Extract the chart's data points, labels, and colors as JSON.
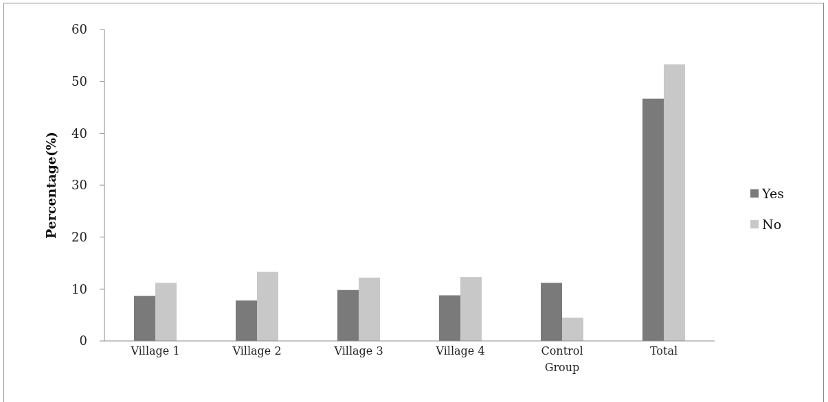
{
  "chart_data": {
    "type": "bar",
    "ylabel": "Percentage(%)",
    "categories": [
      "Village 1",
      "Village 2",
      "Village 3",
      "Village 4",
      "Control Group",
      "Total"
    ],
    "series": [
      {
        "name": "Yes",
        "color": "#7a7a7a",
        "values": [
          8.7,
          7.8,
          9.8,
          8.8,
          11.2,
          46.7
        ]
      },
      {
        "name": "No",
        "color": "#c8c8c8",
        "values": [
          11.2,
          13.3,
          12.2,
          12.3,
          4.5,
          53.3
        ]
      }
    ],
    "ylim": [
      0,
      60
    ],
    "yticks": [
      0,
      10,
      20,
      30,
      40,
      50,
      60
    ],
    "legend": "right"
  }
}
